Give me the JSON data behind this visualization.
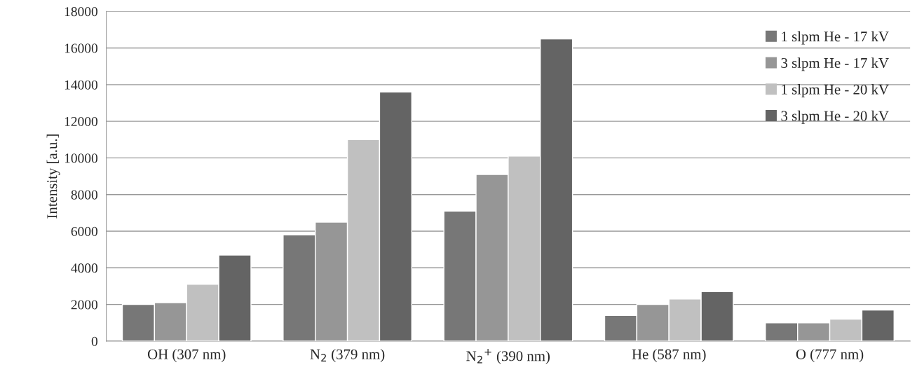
{
  "chart_data": {
    "type": "bar",
    "ylabel": "Intensity [a.u.]",
    "categories": [
      "OH (307 nm)",
      "N$_{2}$ (379 nm)",
      "N$_{2}$$^{+}$ (390 nm)",
      "He (587 nm)",
      "O (777 nm)"
    ],
    "series": [
      {
        "name": "1 slpm He - 17 kV",
        "color": "#777777",
        "values": [
          2000,
          5800,
          7100,
          1400,
          1000
        ]
      },
      {
        "name": "3 slpm He - 17 kV",
        "color": "#969696",
        "values": [
          2100,
          6500,
          9100,
          2000,
          1000
        ]
      },
      {
        "name": "1 slpm He - 20 kV",
        "color": "#c0c0c0",
        "values": [
          3100,
          11000,
          10100,
          2300,
          1200
        ]
      },
      {
        "name": "3 slpm He - 20 kV",
        "color": "#646464",
        "values": [
          4700,
          13600,
          16500,
          2700,
          1700
        ]
      }
    ],
    "ylim": [
      0,
      18000
    ],
    "yticks": [
      0,
      2000,
      4000,
      6000,
      8000,
      10000,
      12000,
      14000,
      16000,
      18000
    ],
    "grid": "y",
    "legend": "top right"
  }
}
